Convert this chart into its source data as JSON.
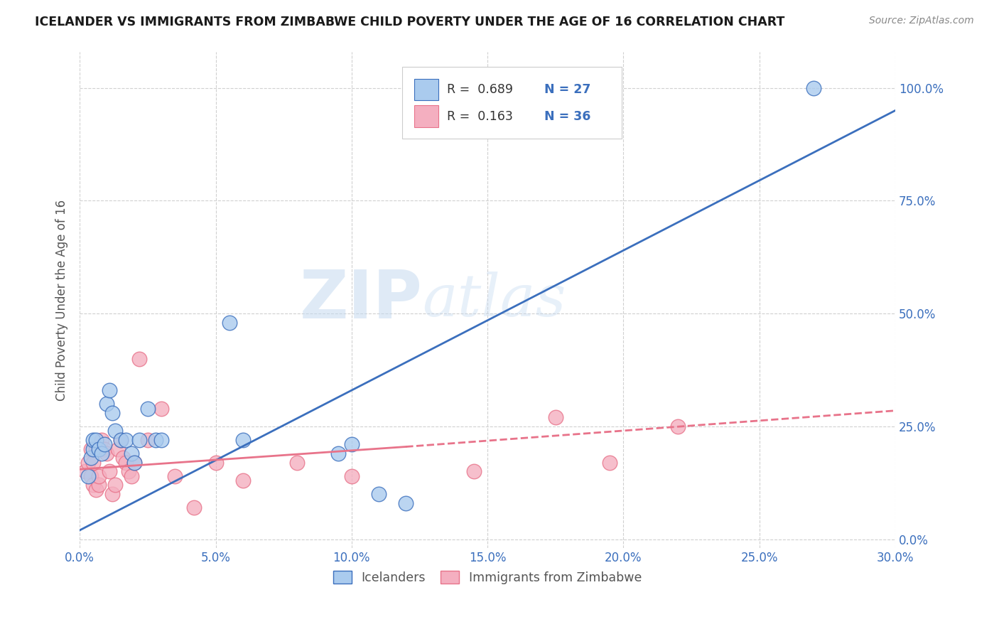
{
  "title": "ICELANDER VS IMMIGRANTS FROM ZIMBABWE CHILD POVERTY UNDER THE AGE OF 16 CORRELATION CHART",
  "source": "Source: ZipAtlas.com",
  "ylabel": "Child Poverty Under the Age of 16",
  "xlabel_ticks": [
    "0.0%",
    "5.0%",
    "10.0%",
    "15.0%",
    "20.0%",
    "25.0%",
    "30.0%"
  ],
  "ylabel_ticks": [
    "0.0%",
    "25.0%",
    "50.0%",
    "75.0%",
    "100.0%"
  ],
  "xmin": 0.0,
  "xmax": 0.3,
  "ymin": -0.02,
  "ymax": 1.08,
  "watermark_zip": "ZIP",
  "watermark_atlas": "atlas",
  "legend_label1": "Icelanders",
  "legend_label2": "Immigrants from Zimbabwe",
  "R1": "0.689",
  "N1": "27",
  "R2": "0.163",
  "N2": "36",
  "color1": "#aacbee",
  "color2": "#f4afc0",
  "line_color1": "#3b6fbd",
  "line_color2": "#e8738a",
  "icelanders_x": [
    0.003,
    0.004,
    0.005,
    0.005,
    0.006,
    0.007,
    0.008,
    0.009,
    0.01,
    0.011,
    0.012,
    0.013,
    0.015,
    0.017,
    0.019,
    0.02,
    0.022,
    0.025,
    0.028,
    0.03,
    0.055,
    0.06,
    0.095,
    0.1,
    0.11,
    0.12,
    0.27
  ],
  "icelanders_y": [
    0.14,
    0.18,
    0.2,
    0.22,
    0.22,
    0.2,
    0.19,
    0.21,
    0.3,
    0.33,
    0.28,
    0.24,
    0.22,
    0.22,
    0.19,
    0.17,
    0.22,
    0.29,
    0.22,
    0.22,
    0.48,
    0.22,
    0.19,
    0.21,
    0.1,
    0.08,
    1.0
  ],
  "zimbabwe_x": [
    0.002,
    0.003,
    0.004,
    0.004,
    0.005,
    0.005,
    0.006,
    0.006,
    0.007,
    0.007,
    0.008,
    0.009,
    0.01,
    0.011,
    0.012,
    0.013,
    0.014,
    0.015,
    0.016,
    0.017,
    0.018,
    0.019,
    0.02,
    0.022,
    0.025,
    0.03,
    0.035,
    0.042,
    0.05,
    0.06,
    0.08,
    0.1,
    0.145,
    0.175,
    0.195,
    0.22
  ],
  "zimbabwe_y": [
    0.15,
    0.17,
    0.14,
    0.2,
    0.12,
    0.17,
    0.11,
    0.2,
    0.12,
    0.14,
    0.22,
    0.2,
    0.19,
    0.15,
    0.1,
    0.12,
    0.2,
    0.22,
    0.18,
    0.17,
    0.15,
    0.14,
    0.17,
    0.4,
    0.22,
    0.29,
    0.14,
    0.07,
    0.17,
    0.13,
    0.17,
    0.14,
    0.15,
    0.27,
    0.17,
    0.25
  ],
  "ice_line_x0": 0.0,
  "ice_line_y0": 0.02,
  "ice_line_x1": 0.3,
  "ice_line_y1": 0.95,
  "zim_line_x0": 0.0,
  "zim_line_y0": 0.155,
  "zim_line_x1": 0.3,
  "zim_line_y1": 0.285
}
